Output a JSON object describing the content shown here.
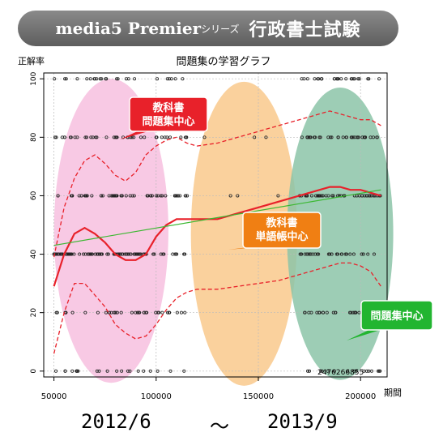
{
  "banner": {
    "brand": "media5 Premier",
    "series": "シリーズ",
    "subject": "行政書士試験"
  },
  "footer": {
    "start": "2012/6",
    "tilde": "～",
    "end": "2013/9"
  },
  "colors": {
    "trend": "#e8212a",
    "linear": "#3cb832",
    "pink": "#f7bfdf",
    "orange": "#f9c98c",
    "green": "#8cc4a8"
  },
  "chart_data": {
    "type": "scatter",
    "title": "問題集の学習グラフ",
    "xlabel": "期間",
    "ylabel": "正解率",
    "xlim": [
      45000,
      213000
    ],
    "ylim": [
      -2,
      102
    ],
    "xticks": [
      50000,
      100000,
      150000,
      200000
    ],
    "yticks": [
      0,
      20,
      40,
      60,
      80,
      100
    ],
    "xtick_labels": [
      "50000",
      "100000",
      "150000",
      "200000"
    ],
    "ytick_labels": [
      "0",
      "20",
      "40",
      "60",
      "80",
      "100"
    ],
    "grid": true,
    "annotation": "2476266855",
    "regions": [
      {
        "label": "教科書\n問題集中心",
        "color": "#e8212a",
        "cx": 78000,
        "cy": 48,
        "rx": 28000,
        "ry": 52
      },
      {
        "label": "教科書\n単語帳中心",
        "color": "#f07f13",
        "cx": 143000,
        "cy": 47,
        "rx": 26000,
        "ry": 52
      },
      {
        "label": "問題集中心",
        "color": "#22b530",
        "cx": 190000,
        "cy": 47,
        "rx": 26000,
        "ry": 50
      }
    ],
    "series": [
      {
        "type": "trend",
        "x": [
          50000,
          55000,
          60000,
          65000,
          70000,
          75000,
          80000,
          85000,
          90000,
          95000,
          100000,
          105000,
          110000,
          115000,
          120000,
          130000,
          140000,
          150000,
          160000,
          170000,
          180000,
          185000,
          190000,
          195000,
          200000,
          205000,
          210000
        ],
        "values": [
          29,
          40,
          47,
          49,
          47,
          44,
          40,
          38,
          38,
          40,
          46,
          50,
          52,
          52,
          52,
          52,
          54,
          56,
          58,
          60,
          62,
          63,
          63,
          62,
          62,
          61,
          60
        ]
      },
      {
        "type": "upper_band",
        "x": [
          50000,
          55000,
          60000,
          65000,
          70000,
          75000,
          80000,
          85000,
          90000,
          95000,
          100000,
          105000,
          110000,
          115000,
          120000,
          130000,
          140000,
          150000,
          160000,
          170000,
          180000,
          185000,
          190000,
          195000,
          200000,
          205000,
          210000
        ],
        "values": [
          39,
          56,
          66,
          72,
          74,
          71,
          67,
          65,
          68,
          74,
          77,
          79,
          80,
          78,
          77,
          78,
          80,
          82,
          84,
          86,
          88,
          89,
          88,
          87,
          86,
          86,
          84
        ]
      },
      {
        "type": "lower_band",
        "x": [
          50000,
          55000,
          60000,
          65000,
          70000,
          75000,
          80000,
          85000,
          90000,
          95000,
          100000,
          105000,
          110000,
          115000,
          120000,
          130000,
          140000,
          150000,
          160000,
          170000,
          180000,
          185000,
          190000,
          195000,
          200000,
          205000,
          210000
        ],
        "values": [
          6,
          20,
          30,
          30,
          26,
          22,
          16,
          13,
          11,
          12,
          16,
          21,
          25,
          27,
          28,
          28,
          29,
          30,
          31,
          33,
          35,
          36,
          37,
          37,
          36,
          34,
          29
        ]
      },
      {
        "type": "linear_fit",
        "x": [
          50000,
          210000
        ],
        "values": [
          43,
          62
        ]
      }
    ]
  }
}
